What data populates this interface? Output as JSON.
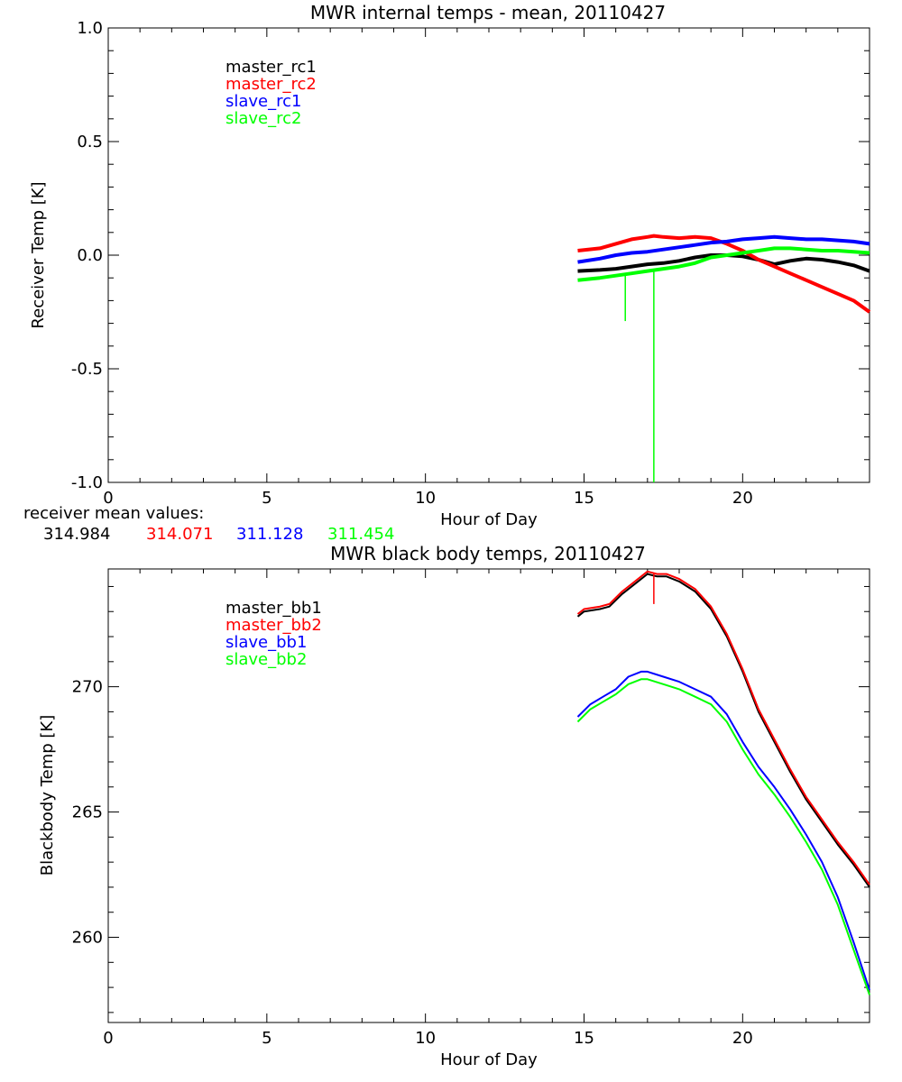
{
  "chart_data": [
    {
      "type": "line",
      "title": "MWR internal temps - mean, 20110427",
      "xlabel": "Hour of Day",
      "ylabel": "Receiver Temp [K]",
      "xlim": [
        0,
        24
      ],
      "ylim": [
        -1.0,
        1.0
      ],
      "x_ticks": [
        0,
        5,
        10,
        15,
        20
      ],
      "x_tick_labels": [
        "0",
        "5",
        "10",
        "15",
        "20"
      ],
      "y_ticks": [
        -1.0,
        -0.5,
        0.0,
        0.5,
        1.0
      ],
      "y_tick_labels": [
        "-1.0",
        "-0.5",
        "0.0",
        "0.5",
        "1.0"
      ],
      "legend_position": "top-left",
      "series": [
        {
          "name": "master_rc1",
          "color": "#000000",
          "x": [
            14.8,
            15.5,
            16.0,
            16.5,
            17.0,
            17.5,
            18.0,
            18.5,
            19.0,
            19.5,
            20.0,
            20.5,
            21.0,
            21.5,
            22.0,
            22.5,
            23.0,
            23.5,
            24.0
          ],
          "values": [
            -0.07,
            -0.065,
            -0.06,
            -0.05,
            -0.04,
            -0.035,
            -0.025,
            -0.01,
            0.0,
            0.0,
            -0.005,
            -0.02,
            -0.04,
            -0.025,
            -0.015,
            -0.02,
            -0.03,
            -0.045,
            -0.07
          ]
        },
        {
          "name": "master_rc2",
          "color": "#ff0000",
          "x": [
            14.8,
            15.5,
            16.0,
            16.5,
            17.0,
            17.2,
            17.5,
            18.0,
            18.5,
            19.0,
            19.5,
            20.0,
            20.5,
            21.0,
            21.5,
            22.0,
            22.5,
            23.0,
            23.5,
            24.0
          ],
          "values": [
            0.02,
            0.03,
            0.05,
            0.07,
            0.08,
            0.085,
            0.08,
            0.075,
            0.08,
            0.075,
            0.05,
            0.02,
            -0.02,
            -0.05,
            -0.08,
            -0.11,
            -0.14,
            -0.17,
            -0.2,
            -0.25
          ]
        },
        {
          "name": "slave_rc1",
          "color": "#0000ff",
          "x": [
            14.8,
            15.5,
            16.0,
            16.5,
            17.0,
            17.5,
            18.0,
            18.5,
            19.0,
            19.5,
            20.0,
            20.5,
            21.0,
            21.5,
            22.0,
            22.5,
            23.0,
            23.5,
            24.0
          ],
          "values": [
            -0.03,
            -0.015,
            0.0,
            0.01,
            0.015,
            0.025,
            0.035,
            0.045,
            0.055,
            0.06,
            0.07,
            0.075,
            0.08,
            0.075,
            0.07,
            0.07,
            0.065,
            0.06,
            0.05
          ]
        },
        {
          "name": "slave_rc2",
          "color": "#00ff00",
          "x": [
            14.8,
            15.5,
            16.0,
            16.5,
            17.0,
            17.5,
            18.0,
            18.5,
            19.0,
            19.5,
            20.0,
            20.5,
            21.0,
            21.5,
            22.0,
            22.5,
            23.0,
            23.5,
            24.0
          ],
          "values": [
            -0.11,
            -0.1,
            -0.09,
            -0.08,
            -0.07,
            -0.06,
            -0.05,
            -0.035,
            -0.01,
            0.0,
            0.01,
            0.02,
            0.03,
            0.03,
            0.025,
            0.02,
            0.02,
            0.015,
            0.01
          ],
          "spikes": [
            {
              "x": 16.3,
              "y": -0.29
            },
            {
              "x": 17.2,
              "y": -1.0
            }
          ]
        }
      ],
      "annotation": {
        "label": "receiver mean values:",
        "values": [
          {
            "text": "314.984",
            "color": "#000000"
          },
          {
            "text": "314.071",
            "color": "#ff0000"
          },
          {
            "text": "311.128",
            "color": "#0000ff"
          },
          {
            "text": "311.454",
            "color": "#00ff00"
          }
        ]
      }
    },
    {
      "type": "line",
      "title": "MWR black body temps, 20110427",
      "xlabel": "Hour of Day",
      "ylabel": "Blackbody Temp [K]",
      "xlim": [
        0,
        24
      ],
      "ylim": [
        256.6,
        274.7
      ],
      "x_ticks": [
        0,
        5,
        10,
        15,
        20
      ],
      "x_tick_labels": [
        "0",
        "5",
        "10",
        "15",
        "20"
      ],
      "y_ticks": [
        260,
        265,
        270
      ],
      "y_tick_labels": [
        "260",
        "265",
        "270"
      ],
      "legend_position": "top-left",
      "series": [
        {
          "name": "master_bb1",
          "color": "#000000",
          "x": [
            14.8,
            15.0,
            15.5,
            15.8,
            16.2,
            16.6,
            17.0,
            17.3,
            17.6,
            18.0,
            18.5,
            19.0,
            19.5,
            20.0,
            20.5,
            21.0,
            21.5,
            22.0,
            22.5,
            23.0,
            23.5,
            24.0
          ],
          "values": [
            272.8,
            273.0,
            273.1,
            273.2,
            273.7,
            274.1,
            274.5,
            274.4,
            274.4,
            274.2,
            273.8,
            273.1,
            272.0,
            270.6,
            269.0,
            267.8,
            266.6,
            265.5,
            264.6,
            263.7,
            262.9,
            262.0
          ]
        },
        {
          "name": "master_bb2",
          "color": "#ff0000",
          "x": [
            14.8,
            15.0,
            15.5,
            15.8,
            16.2,
            16.6,
            17.0,
            17.3,
            17.6,
            18.0,
            18.5,
            19.0,
            19.5,
            20.0,
            20.5,
            21.0,
            21.5,
            22.0,
            22.5,
            23.0,
            23.5,
            24.0
          ],
          "values": [
            272.9,
            273.1,
            273.2,
            273.3,
            273.8,
            274.2,
            274.6,
            274.5,
            274.5,
            274.3,
            273.9,
            273.2,
            272.1,
            270.7,
            269.1,
            267.9,
            266.7,
            265.6,
            264.7,
            263.8,
            263.0,
            262.1
          ],
          "spikes": [
            {
              "x": 17.2,
              "y": 273.3
            }
          ]
        },
        {
          "name": "slave_bb1",
          "color": "#0000ff",
          "x": [
            14.8,
            15.2,
            15.6,
            16.0,
            16.4,
            16.8,
            17.0,
            17.5,
            18.0,
            18.5,
            19.0,
            19.5,
            20.0,
            20.5,
            21.0,
            21.5,
            22.0,
            22.5,
            23.0,
            23.5,
            24.0
          ],
          "values": [
            268.8,
            269.3,
            269.6,
            269.9,
            270.4,
            270.6,
            270.6,
            270.4,
            270.2,
            269.9,
            269.6,
            268.9,
            267.8,
            266.8,
            266.0,
            265.1,
            264.1,
            263.0,
            261.6,
            259.8,
            257.9
          ]
        },
        {
          "name": "slave_bb2",
          "color": "#00ff00",
          "x": [
            14.8,
            15.2,
            15.6,
            16.0,
            16.4,
            16.8,
            17.0,
            17.5,
            18.0,
            18.5,
            19.0,
            19.5,
            20.0,
            20.5,
            21.0,
            21.5,
            22.0,
            22.5,
            23.0,
            23.5,
            24.0
          ],
          "values": [
            268.6,
            269.1,
            269.4,
            269.7,
            270.1,
            270.3,
            270.3,
            270.1,
            269.9,
            269.6,
            269.3,
            268.6,
            267.5,
            266.5,
            265.7,
            264.8,
            263.8,
            262.7,
            261.3,
            259.5,
            257.7
          ]
        }
      ]
    }
  ]
}
